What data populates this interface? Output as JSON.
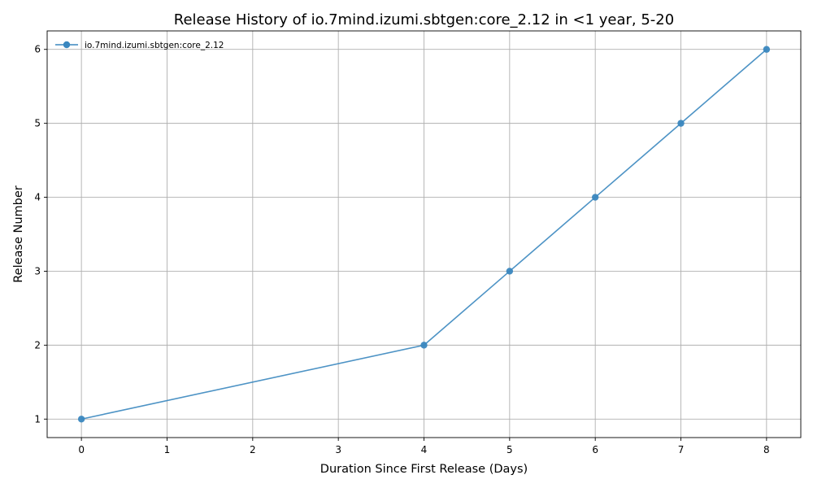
{
  "chart_data": {
    "type": "line",
    "title": "Release History of io.7mind.izumi.sbtgen:core_2.12 in <1 year, 5-20",
    "xlabel": "Duration Since First Release (Days)",
    "ylabel": "Release Number",
    "xlim": [
      -0.4,
      8.4
    ],
    "ylim": [
      0.75,
      6.25
    ],
    "xticks": [
      0,
      1,
      2,
      3,
      4,
      5,
      6,
      7,
      8
    ],
    "yticks": [
      1,
      2,
      3,
      4,
      5,
      6
    ],
    "grid": true,
    "legend_position": "upper-left",
    "series": [
      {
        "name": "io.7mind.izumi.sbtgen:core_2.12",
        "color": "#3a87bf",
        "marker": "circle",
        "x": [
          0,
          4,
          5,
          6,
          7,
          8
        ],
        "y": [
          1,
          2,
          3,
          4,
          5,
          6
        ]
      }
    ]
  }
}
